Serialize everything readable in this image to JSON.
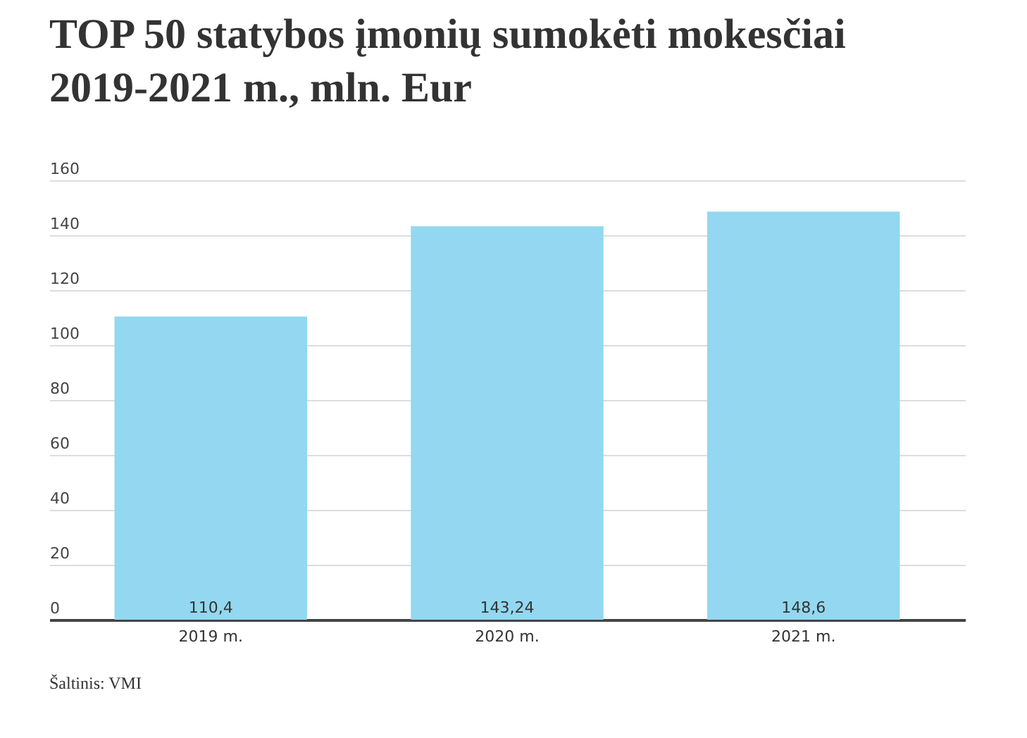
{
  "chart_data": {
    "type": "bar",
    "title": "TOP 50 statybos įmonių sumokėti mokesčiai 2019-2021 m., mln. Eur",
    "categories": [
      "2019 m.",
      "2020 m.",
      "2021 m."
    ],
    "values": [
      110.4,
      143.24,
      148.6
    ],
    "value_labels": [
      "110,4",
      "143,24",
      "148,6"
    ],
    "color": "#93d8f0",
    "ylim": [
      0,
      160
    ],
    "yticks": [
      0,
      20,
      40,
      60,
      80,
      100,
      120,
      140,
      160
    ],
    "grid": "y",
    "annotations": [
      "Šaltinis: VMI"
    ]
  }
}
